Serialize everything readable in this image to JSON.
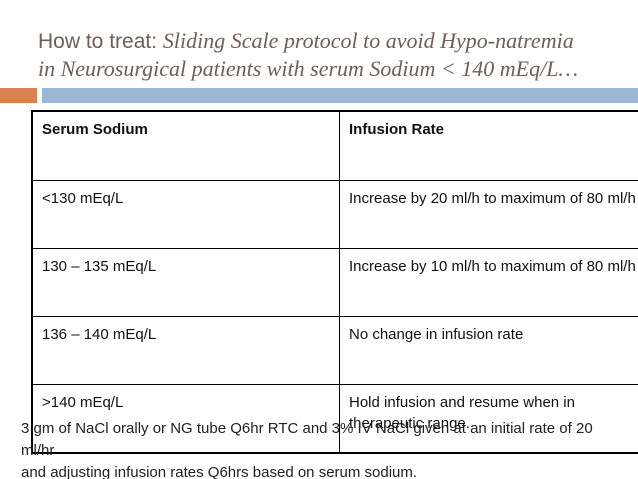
{
  "slide": {
    "title": {
      "prefix": "How to treat: ",
      "italic_line1": "Sliding Scale protocol to avoid Hypo-natremia",
      "italic_line2": "in Neurosurgical patients with serum Sodium < 140 mEq/L…"
    },
    "colors": {
      "title_text": "#6e6057",
      "accent_orange": "#d9824f",
      "accent_blue": "#9ab7d3",
      "table_border": "#000000"
    },
    "table": {
      "headers": [
        "Serum Sodium",
        "Infusion Rate"
      ],
      "rows": [
        [
          "<130 mEq/L",
          "Increase by 20 ml/h to maximum of 80 ml/h"
        ],
        [
          "130 – 135 mEq/L",
          "Increase by 10 ml/h to maximum of 80 ml/h"
        ],
        [
          "136 – 140 mEq/L",
          "No change in infusion rate"
        ],
        [
          ">140 mEq/L",
          "Hold infusion and resume when in therapeutic range."
        ]
      ]
    },
    "footer": {
      "line1": "3 gm of NaCl orally or NG tube Q6hr RTC and 3% IV NaCl given at an initial rate of 20 ml/hr",
      "line2": "and adjusting infusion rates Q6hrs based on serum sodium."
    }
  }
}
